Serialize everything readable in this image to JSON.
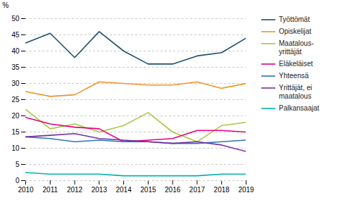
{
  "chart_data": {
    "type": "line",
    "ylabel": "%",
    "x": [
      2010,
      2011,
      2012,
      2013,
      2014,
      2015,
      2016,
      2017,
      2018,
      2019
    ],
    "xlim": [
      2010,
      2019
    ],
    "xticks": [
      2010,
      2011,
      2012,
      2013,
      2014,
      2015,
      2016,
      2017,
      2018,
      2019
    ],
    "ylim": [
      0,
      50
    ],
    "yticks": [
      0,
      5,
      10,
      15,
      20,
      25,
      30,
      35,
      40,
      45,
      50
    ],
    "grid": true,
    "legend": "right",
    "series": [
      {
        "name": "Työttömät",
        "color": "#1a4f72",
        "values": [
          42.5,
          45.5,
          38.0,
          46.0,
          40.0,
          36.0,
          36.0,
          38.5,
          39.5,
          44.0
        ]
      },
      {
        "name": "Opiskelijat",
        "color": "#f4912b",
        "values": [
          27.5,
          26.0,
          26.5,
          30.5,
          30.0,
          29.5,
          29.5,
          30.5,
          28.5,
          30.0
        ]
      },
      {
        "name": "Maatalous-\nyrittäjät",
        "color": "#a8c843",
        "values": [
          22.0,
          16.0,
          17.5,
          15.0,
          17.0,
          21.0,
          15.0,
          12.0,
          17.0,
          18.0
        ]
      },
      {
        "name": "Eläkeläiset",
        "color": "#e6007e",
        "values": [
          19.5,
          17.5,
          16.5,
          16.0,
          12.0,
          12.5,
          13.0,
          15.5,
          15.5,
          15.0
        ]
      },
      {
        "name": "Yhteensä",
        "color": "#2e75b6",
        "values": [
          13.5,
          13.0,
          12.0,
          12.5,
          12.0,
          12.0,
          11.5,
          11.5,
          12.0,
          12.5
        ]
      },
      {
        "name": "Yrittäjät, ei\nmaatalous",
        "color": "#7030a0",
        "values": [
          13.5,
          14.0,
          14.5,
          13.0,
          12.5,
          12.0,
          11.5,
          12.0,
          11.0,
          9.0
        ]
      },
      {
        "name": "Palkansaajat",
        "color": "#00b0b0",
        "values": [
          2.5,
          2.0,
          2.0,
          2.0,
          1.5,
          1.5,
          1.5,
          1.5,
          2.0,
          2.0
        ]
      }
    ]
  }
}
